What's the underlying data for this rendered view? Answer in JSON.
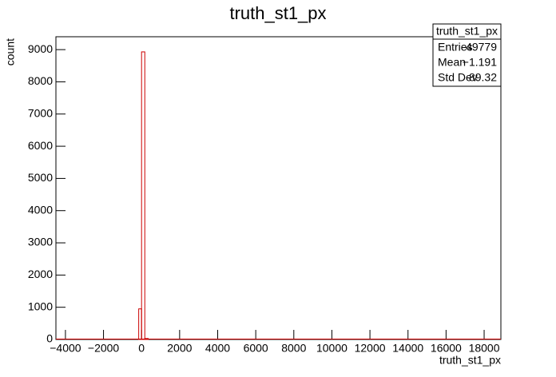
{
  "chart_data": {
    "type": "histogram",
    "title": "truth_st1_px",
    "x_label": "truth_st1_px",
    "y_label": "count",
    "bins": [
      -150,
      0,
      170,
      350
    ],
    "counts": [
      950,
      8930,
      30
    ],
    "color": "#cc0000",
    "xlim": [
      -4500,
      18880
    ],
    "ylim": [
      0,
      9400
    ],
    "xticks": [
      {
        "value": -4000,
        "label": "−4000"
      },
      {
        "value": -2000,
        "label": "−2000"
      },
      0,
      2000,
      4000,
      6000,
      8000,
      10000,
      12000,
      14000,
      16000,
      18000
    ],
    "yticks": [
      0,
      1000,
      2000,
      3000,
      4000,
      5000,
      6000,
      7000,
      8000,
      9000
    ],
    "stats": {
      "title": "truth_st1_px",
      "rows": [
        [
          "Entries",
          "49779"
        ],
        [
          "Mean",
          "−1.191"
        ],
        [
          "Std Dev",
          "89.32"
        ]
      ]
    }
  }
}
